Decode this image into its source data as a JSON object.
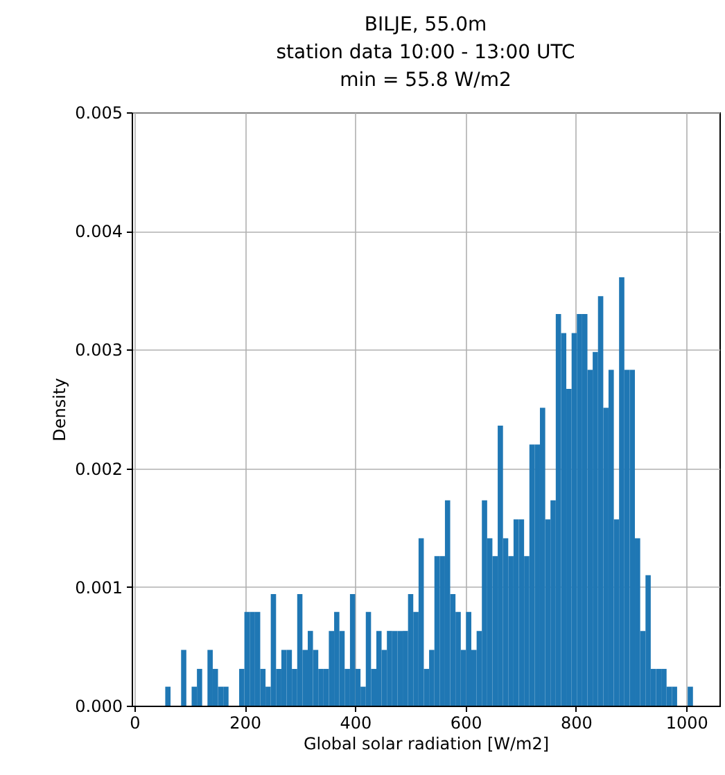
{
  "chart_data": {
    "type": "histogram",
    "title": "BILJE, 55.0m\nstation data 10:00 - 13:00 UTC\nmin = 55.8 W/m2",
    "xlabel": "Global solar radiation [W/m2]",
    "ylabel": "Density",
    "color": "#1f77b4",
    "grid": true,
    "bins": [
      55.8,
      65.4,
      74.9,
      84.5,
      94.0,
      103.6,
      113.2,
      122.7,
      132.3,
      141.9,
      151.4,
      161.0,
      170.5,
      180.1,
      189.7,
      199.2,
      208.8,
      218.4,
      227.9,
      237.5,
      247.0,
      256.6,
      266.2,
      275.7,
      285.3,
      294.9,
      304.4,
      314.0,
      323.5,
      333.1,
      342.7,
      352.2,
      361.8,
      371.3,
      380.9,
      390.5,
      400.0,
      409.6,
      419.2,
      428.7,
      438.3,
      447.8,
      457.4,
      467.0,
      476.5,
      486.1,
      495.7,
      505.2,
      514.8,
      524.3,
      533.9,
      543.5,
      553.0,
      562.6,
      572.1,
      581.7,
      591.3,
      600.8,
      610.4,
      620.0,
      629.5,
      639.1,
      648.6,
      658.2,
      667.8,
      677.3,
      686.9,
      696.5,
      706.0,
      715.6,
      725.1,
      734.7,
      744.3,
      753.8,
      763.4,
      773.0,
      782.5,
      792.1,
      801.6,
      811.2,
      820.8,
      830.3,
      839.9,
      849.5,
      859.0,
      868.6,
      878.1,
      887.7,
      897.3,
      906.8,
      916.4,
      926.0,
      935.5,
      945.1,
      954.6,
      964.2,
      973.8,
      983.3,
      992.9,
      1002.4,
      1012.0
    ],
    "values": [
      0.00016,
      0,
      0,
      0.00047,
      0,
      0.00016,
      0.00031,
      0,
      0.00047,
      0.00031,
      0.00016,
      0.00016,
      0,
      0,
      0.00031,
      0.00079,
      0.00079,
      0.00079,
      0.00031,
      0.00016,
      0.00094,
      0.00031,
      0.00047,
      0.00047,
      0.00031,
      0.00094,
      0.00047,
      0.00063,
      0.00047,
      0.00031,
      0.00031,
      0.00063,
      0.00079,
      0.00063,
      0.00031,
      0.00094,
      0.00031,
      0.00016,
      0.00079,
      0.00031,
      0.00063,
      0.00047,
      0.00063,
      0.00063,
      0.00063,
      0.00063,
      0.00094,
      0.00079,
      0.00141,
      0.00031,
      0.00047,
      0.00126,
      0.00126,
      0.00173,
      0.00094,
      0.00079,
      0.00047,
      0.00079,
      0.00047,
      0.00063,
      0.00173,
      0.00141,
      0.00126,
      0.00236,
      0.00141,
      0.00126,
      0.00157,
      0.00157,
      0.00126,
      0.0022,
      0.0022,
      0.00251,
      0.00157,
      0.00173,
      0.0033,
      0.00314,
      0.00267,
      0.00314,
      0.0033,
      0.0033,
      0.00283,
      0.00298,
      0.00345,
      0.00251,
      0.00283,
      0.00157,
      0.00361,
      0.00283,
      0.00283,
      0.00141,
      0.00063,
      0.0011,
      0.00031,
      0.00031,
      0.00031,
      0.00016,
      0.00016,
      0,
      0,
      0.00016
    ],
    "xlim": [
      -5,
      1060
    ],
    "xticks": [
      0,
      200,
      400,
      600,
      800,
      1000
    ],
    "ylim": [
      0,
      0.005
    ],
    "yticks": [
      {
        "value": 0,
        "label": "0.000"
      },
      {
        "value": 0.001,
        "label": "0.001"
      },
      {
        "value": 0.002,
        "label": "0.002"
      },
      {
        "value": 0.003,
        "label": "0.003"
      },
      {
        "value": 0.004,
        "label": "0.004"
      },
      {
        "value": 0.005,
        "label": "0.005"
      }
    ]
  }
}
